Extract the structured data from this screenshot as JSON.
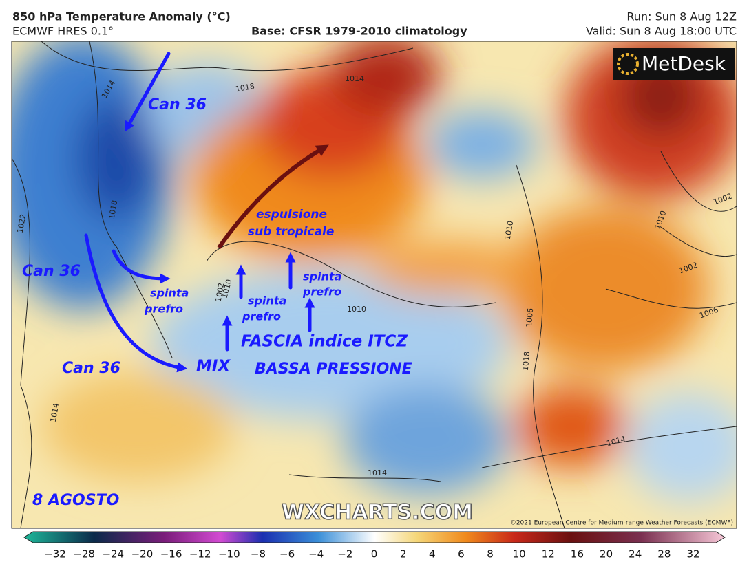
{
  "header": {
    "title": "850 hPa Temperature Anomaly (°C)",
    "model": "ECMWF HRES 0.1°",
    "base": "Base: CFSR 1979-2010 climatology",
    "run": "Run: Sun 8 Aug 12Z",
    "valid": "Valid: Sun 8 Aug 18:00 UTC"
  },
  "map": {
    "logo": "MetDesk",
    "watermark": "WXCHARTS.COM",
    "copyright": "©2021 European Centre for Medium-range Weather Forecasts (ECMWF)",
    "annotations": [
      "Can 36",
      "Can 36",
      "Can 36",
      "espulsione",
      "sub tropicale",
      "spinta",
      "prefro",
      "spinta",
      "prefro",
      "spinta",
      "prefro",
      "FASCIA  indice ITCZ",
      "MIX",
      "BASSA PRESSIONE",
      "8 AGOSTO"
    ],
    "isobar_labels": [
      "1014",
      "1018",
      "1022",
      "1018",
      "1014",
      "1010",
      "1010",
      "1002",
      "1006",
      "1010",
      "1006",
      "1002",
      "1018",
      "1014",
      "1014",
      "1014",
      "1010",
      "1002"
    ]
  },
  "colorbar": {
    "ticks": [
      "−32",
      "−28",
      "−24",
      "−20",
      "−16",
      "−12",
      "−10",
      "−8",
      "−6",
      "−4",
      "−2",
      "0",
      "2",
      "4",
      "6",
      "8",
      "10",
      "12",
      "16",
      "20",
      "24",
      "28",
      "32"
    ]
  }
}
